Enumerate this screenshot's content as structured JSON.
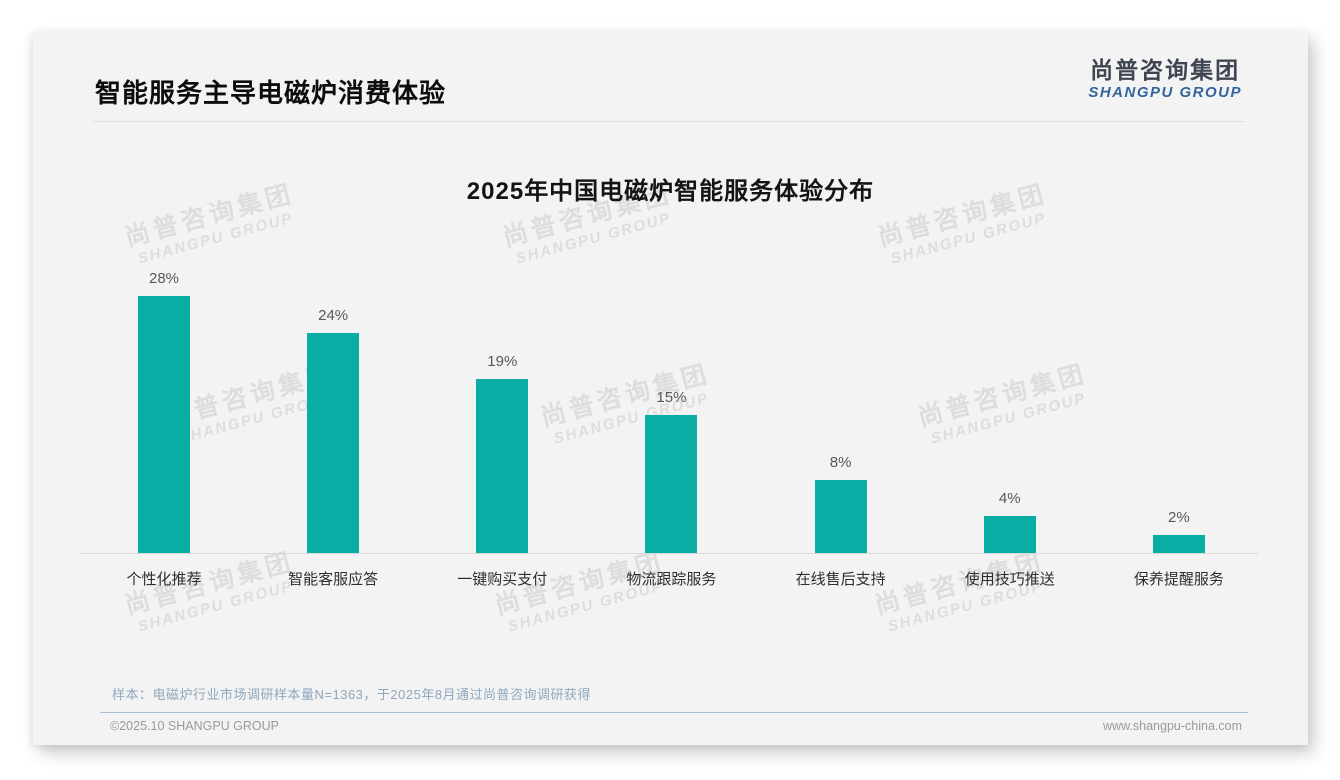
{
  "page": {
    "header": {
      "title": "智能服务主导电磁炉消费体验"
    },
    "logo": {
      "cn": "尚普咨询集团",
      "en": "SHANGPU GROUP",
      "cn_color": "#3f4651",
      "en_color": "#33659c"
    },
    "watermark": {
      "cn": "尚普咨询集团",
      "en": "SHANGPU GROUP"
    },
    "footer": {
      "note": "样本：电磁炉行业市场调研样本量N=1363，于2025年8月通过尚普咨询调研获得",
      "copyright": "©2025.10 SHANGPU GROUP",
      "website": "www.shangpu-china.com"
    }
  },
  "chart_data": {
    "type": "bar",
    "title": "2025年中国电磁炉智能服务体验分布",
    "categories": [
      "个性化推荐",
      "智能客服应答",
      "一键购买支付",
      "物流跟踪服务",
      "在线售后支持",
      "使用技巧推送",
      "保养提醒服务"
    ],
    "values": [
      28,
      24,
      19,
      15,
      8,
      4,
      2
    ],
    "labels": [
      "28%",
      "24%",
      "19%",
      "15%",
      "8%",
      "4%",
      "2%"
    ],
    "unit": "%",
    "bar_color": "#0aada4",
    "ylim": [
      0,
      30
    ],
    "grid": false,
    "y_axis_visible": false,
    "legend": null
  }
}
